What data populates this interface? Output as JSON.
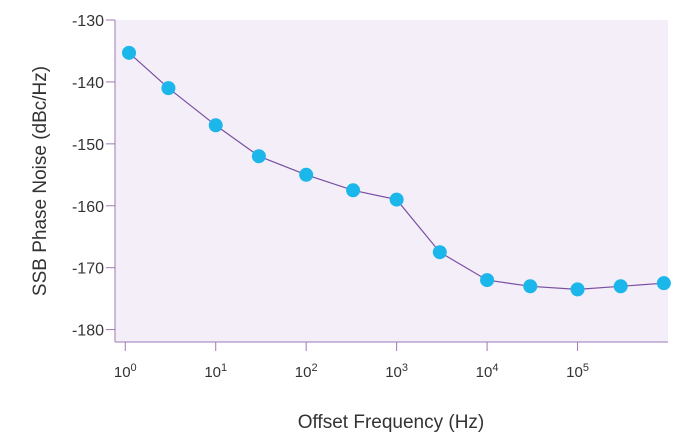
{
  "chart_data": {
    "type": "scatter",
    "title": "",
    "xlabel": "Offset Frequency (Hz)",
    "ylabel": "SSB Phase Noise (dBc/Hz)",
    "x_scale": "log",
    "xlim": [
      0.77,
      1000000
    ],
    "ylim": [
      -182,
      -130
    ],
    "y_ticks": [
      -130,
      -140,
      -150,
      -160,
      -170,
      -180
    ],
    "x_ticks": [
      {
        "base": "10",
        "exp": "0"
      },
      {
        "base": "10",
        "exp": "1"
      },
      {
        "base": "10",
        "exp": "2"
      },
      {
        "base": "10",
        "exp": "3"
      },
      {
        "base": "10",
        "exp": "4"
      },
      {
        "base": "10",
        "exp": "5"
      }
    ],
    "grid": false,
    "legend": "none",
    "series": [
      {
        "x": [
          1.1,
          3,
          10,
          30,
          100,
          330,
          1000,
          3000,
          10000,
          30000,
          100000,
          300000,
          900000
        ],
        "y": [
          -135.3,
          -141,
          -147,
          -152,
          -155,
          -157.5,
          -159,
          -167.5,
          -172,
          -173,
          -173.5,
          -173,
          -172.5
        ]
      }
    ],
    "colors": {
      "plot_background": "#f3eef8",
      "axis_line": "#9b79b8",
      "series_line": "#7a4fa3",
      "marker": "#1bb6ea"
    }
  }
}
